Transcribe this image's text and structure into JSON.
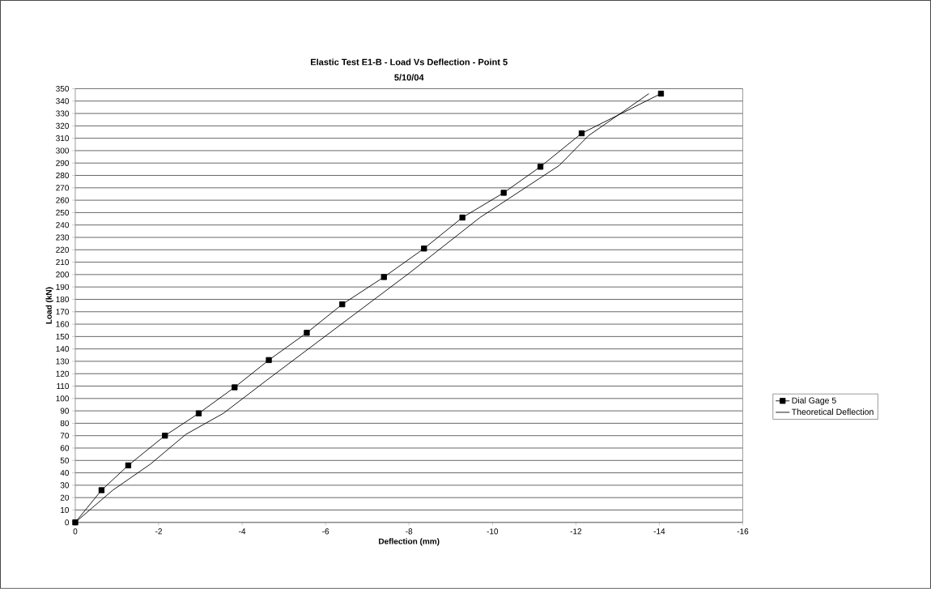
{
  "chart_data": {
    "type": "line",
    "title": "Elastic Test E1-B - Load Vs Deflection - Point 5",
    "subtitle": "5/10/04",
    "xlabel": "Deflection (mm)",
    "ylabel": "Load (kN)",
    "xlim": [
      0,
      -16
    ],
    "xticks": [
      0,
      -2,
      -4,
      -6,
      -8,
      -10,
      -12,
      -14,
      -16
    ],
    "ylim": [
      0,
      350
    ],
    "yticks": [
      0,
      10,
      20,
      30,
      40,
      50,
      60,
      70,
      80,
      90,
      100,
      110,
      120,
      130,
      140,
      150,
      160,
      170,
      180,
      190,
      200,
      210,
      220,
      230,
      240,
      250,
      260,
      270,
      280,
      290,
      300,
      310,
      320,
      330,
      340,
      350
    ],
    "grid": "y",
    "legend": "right",
    "series": [
      {
        "name": "Dial Gage 5",
        "color": "#000000",
        "marker": "square",
        "x": [
          0,
          -0.63,
          -1.27,
          -2.15,
          -2.96,
          -3.82,
          -4.64,
          -5.55,
          -6.4,
          -7.4,
          -8.36,
          -9.28,
          -10.27,
          -11.15,
          -12.14,
          -14.04
        ],
        "values": [
          0,
          26,
          46,
          70,
          88,
          109,
          131,
          153,
          176,
          198,
          221,
          246,
          266,
          287,
          314,
          346
        ]
      },
      {
        "name": "Theoretical Deflection",
        "color": "#000000",
        "marker": "none",
        "x": [
          0,
          -0.9,
          -1.8,
          -2.65,
          -3.55,
          -4.6,
          -8.0,
          -9.7,
          -11.6,
          -12.3,
          -13.75
        ],
        "values": [
          0,
          26,
          47,
          71,
          88,
          115,
          201,
          246,
          288,
          312,
          346
        ]
      }
    ]
  }
}
